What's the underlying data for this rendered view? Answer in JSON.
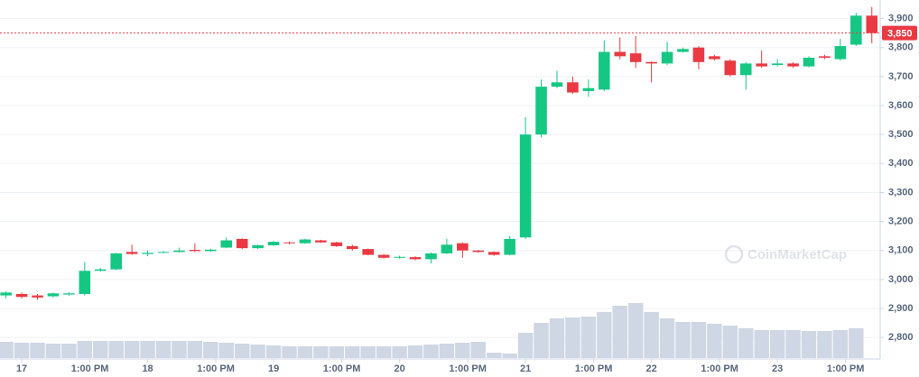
{
  "chart_data": {
    "type": "candlestick",
    "watermark": "CoinMarketCap",
    "up_color": "#16c784",
    "down_color": "#ea3943",
    "volume_color": "#cfd6e4",
    "grid": true,
    "last_price": {
      "value": 3850,
      "label": "3,850"
    },
    "open": [
      2945,
      2950,
      2945,
      2942,
      2948,
      2950,
      3030,
      3035,
      3095,
      3088,
      3092,
      3095,
      3102,
      3098,
      3110,
      3140,
      3108,
      3118,
      3128,
      3125,
      3135,
      3128,
      3115,
      3105,
      3085,
      3075,
      3077,
      3070,
      3090,
      3125,
      3100,
      3095,
      3085,
      3145,
      3500,
      3665,
      3680,
      3650,
      3655,
      3785,
      3780,
      3750,
      3745,
      3785,
      3800,
      3770,
      3755,
      3705,
      3745,
      3740,
      3745,
      3735,
      3770,
      3760,
      3810,
      3910
    ],
    "close": [
      2955,
      2940,
      2938,
      2952,
      2952,
      3030,
      3035,
      3090,
      3088,
      3092,
      3095,
      3100,
      3098,
      3103,
      3135,
      3108,
      3118,
      3130,
      3125,
      3138,
      3128,
      3115,
      3105,
      3085,
      3075,
      3078,
      3070,
      3090,
      3120,
      3100,
      3095,
      3085,
      3140,
      3500,
      3665,
      3680,
      3645,
      3660,
      3785,
      3770,
      3750,
      3745,
      3785,
      3795,
      3750,
      3760,
      3705,
      3745,
      3735,
      3745,
      3735,
      3765,
      3765,
      3805,
      3910,
      3850
    ],
    "high": [
      2960,
      2955,
      2950,
      2955,
      2956,
      3060,
      3040,
      3092,
      3120,
      3100,
      3098,
      3110,
      3125,
      3106,
      3145,
      3142,
      3121,
      3133,
      3131,
      3141,
      3137,
      3130,
      3120,
      3107,
      3088,
      3082,
      3080,
      3093,
      3140,
      3128,
      3102,
      3097,
      3150,
      3560,
      3690,
      3720,
      3700,
      3690,
      3825,
      3835,
      3840,
      3752,
      3820,
      3800,
      3805,
      3775,
      3760,
      3750,
      3790,
      3760,
      3750,
      3770,
      3775,
      3830,
      3920,
      3940
    ],
    "low": [
      2935,
      2935,
      2930,
      2938,
      2944,
      2945,
      3027,
      3032,
      3085,
      3080,
      3090,
      3093,
      3095,
      3096,
      3108,
      3105,
      3105,
      3116,
      3122,
      3123,
      3126,
      3112,
      3100,
      3083,
      3072,
      3072,
      3066,
      3055,
      3088,
      3075,
      3092,
      3082,
      3083,
      3140,
      3490,
      3660,
      3640,
      3630,
      3650,
      3760,
      3730,
      3680,
      3740,
      3783,
      3725,
      3755,
      3700,
      3655,
      3730,
      3735,
      3730,
      3732,
      3760,
      3755,
      3805,
      3815
    ],
    "volume": [
      18,
      17,
      17,
      16,
      16,
      19,
      19,
      19,
      19,
      19,
      19,
      19,
      19,
      18,
      17,
      16,
      15,
      14,
      13,
      13,
      13,
      13,
      13,
      13,
      13,
      13,
      14,
      15,
      16,
      17,
      18,
      6,
      5,
      28,
      39,
      44,
      45,
      46,
      51,
      58,
      61,
      51,
      44,
      40,
      40,
      38,
      36,
      33,
      31,
      31,
      31,
      30,
      30,
      31,
      33,
      null
    ],
    "xlim": [
      -0.38,
      55.53
    ],
    "xticks": [
      {
        "value": 1,
        "label": "17"
      },
      {
        "value": 5.33,
        "label": "1:00 PM"
      },
      {
        "value": 9,
        "label": "18"
      },
      {
        "value": 13.33,
        "label": "1:00 PM"
      },
      {
        "value": 17,
        "label": "19"
      },
      {
        "value": 21.33,
        "label": "1:00 PM"
      },
      {
        "value": 25,
        "label": "20"
      },
      {
        "value": 29.33,
        "label": "1:00 PM"
      },
      {
        "value": 33,
        "label": "21"
      },
      {
        "value": 37.33,
        "label": "1:00 PM"
      },
      {
        "value": 41,
        "label": "22"
      },
      {
        "value": 45.33,
        "label": "1:00 PM"
      },
      {
        "value": 49,
        "label": "23"
      },
      {
        "value": 53.33,
        "label": "1:00 PM"
      }
    ],
    "ylim": [
      2729,
      3964
    ],
    "yticks": [
      {
        "value": 2800,
        "label": "2,800"
      },
      {
        "value": 2900,
        "label": "2,900"
      },
      {
        "value": 3000,
        "label": "3,000"
      },
      {
        "value": 3100,
        "label": "3,100"
      },
      {
        "value": 3200,
        "label": "3,200"
      },
      {
        "value": 3300,
        "label": "3,300"
      },
      {
        "value": 3400,
        "label": "3,400"
      },
      {
        "value": 3500,
        "label": "3,500"
      },
      {
        "value": 3600,
        "label": "3,600"
      },
      {
        "value": 3700,
        "label": "3,700"
      },
      {
        "value": 3800,
        "label": "3,800"
      },
      {
        "value": 3900,
        "label": "3,900"
      }
    ]
  }
}
